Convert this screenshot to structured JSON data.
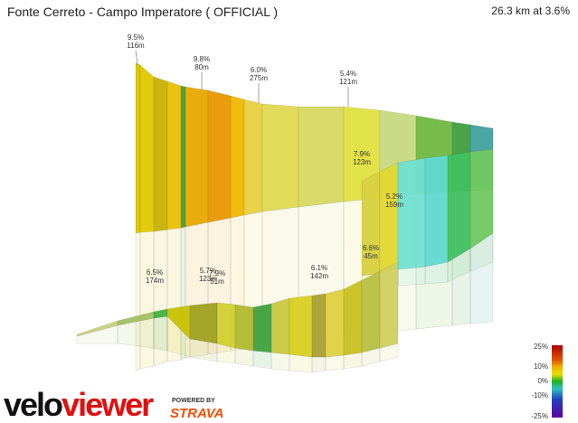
{
  "header": {
    "title": "Fonte Cerreto - Campo Imperatore ( OFFICIAL )",
    "summary": "26.3 km at 3.6%"
  },
  "annotations": [
    {
      "grade": "9.5%",
      "length": "116m"
    },
    {
      "grade": "9.8%",
      "length": "80m"
    },
    {
      "grade": "6.0%",
      "length": "275m"
    },
    {
      "grade": "5.4%",
      "length": "121m"
    },
    {
      "grade": "7.9%",
      "length": "123m"
    },
    {
      "grade": "5.2%",
      "length": "159m"
    },
    {
      "grade": "6.6%",
      "length": "45m"
    },
    {
      "grade": "6.1%",
      "length": "142m"
    },
    {
      "grade": "6.5%",
      "length": "174m"
    },
    {
      "grade": "5.7%",
      "length": "123m"
    },
    {
      "grade": "7.9%",
      "length": "51m"
    }
  ],
  "legend": {
    "labels": [
      "25%",
      "10%",
      "0%",
      "-10%",
      "-25%"
    ]
  },
  "branding": {
    "logo_velo": "velo",
    "logo_viewer": "viewer",
    "powered_by": "POWERED BY",
    "strava": "STRAVA"
  }
}
